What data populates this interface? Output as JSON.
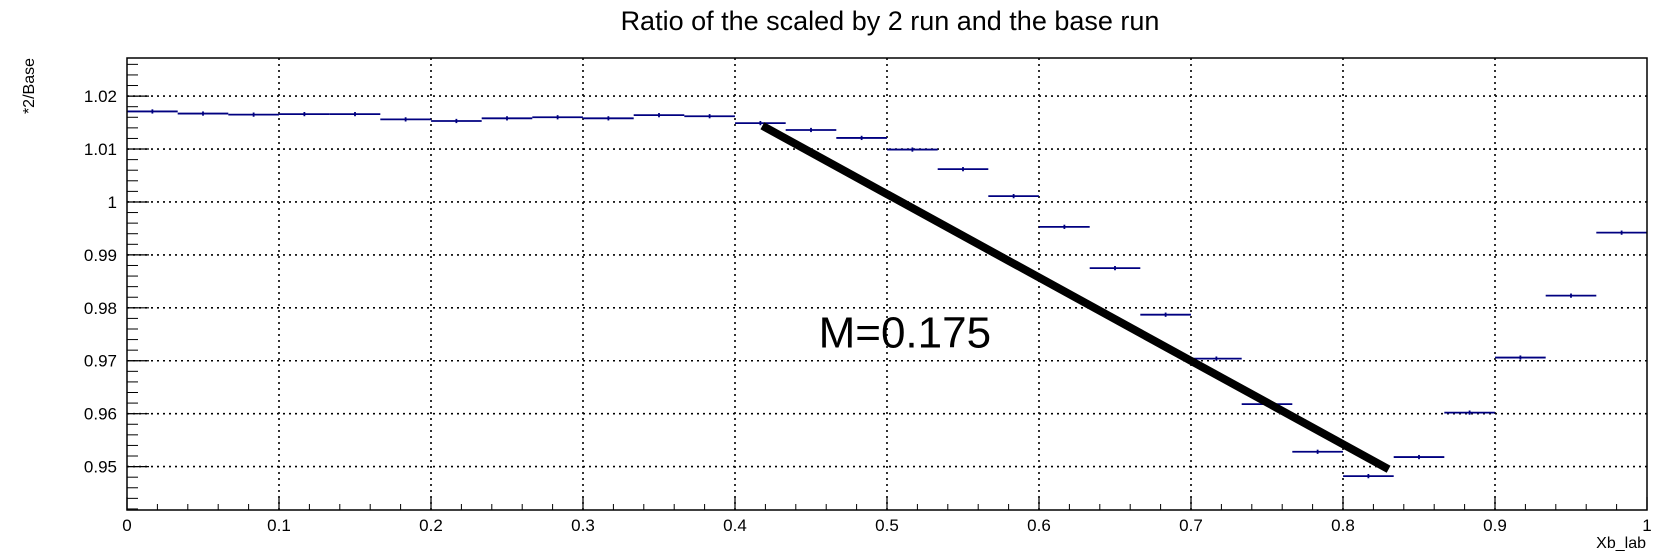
{
  "chart_data": {
    "type": "scatter",
    "title": "Ratio of the scaled by 2 run and the base run",
    "xlabel": "Xb_lab",
    "ylabel": "*2/Base",
    "xlim": [
      0,
      1
    ],
    "ylim": [
      0.9418,
      1.0272
    ],
    "x_ticks": [
      {
        "v": 0,
        "label": "0"
      },
      {
        "v": 0.1,
        "label": "0.1"
      },
      {
        "v": 0.2,
        "label": "0.2"
      },
      {
        "v": 0.3,
        "label": "0.3"
      },
      {
        "v": 0.4,
        "label": "0.4"
      },
      {
        "v": 0.5,
        "label": "0.5"
      },
      {
        "v": 0.6,
        "label": "0.6"
      },
      {
        "v": 0.7,
        "label": "0.7"
      },
      {
        "v": 0.8,
        "label": "0.8"
      },
      {
        "v": 0.9,
        "label": "0.9"
      },
      {
        "v": 1,
        "label": "1"
      }
    ],
    "y_ticks": [
      {
        "v": 0.95,
        "label": "0.95"
      },
      {
        "v": 0.96,
        "label": "0.96"
      },
      {
        "v": 0.97,
        "label": "0.97"
      },
      {
        "v": 0.98,
        "label": "0.98"
      },
      {
        "v": 0.99,
        "label": "0.99"
      },
      {
        "v": 1.0,
        "label": "1"
      },
      {
        "v": 1.01,
        "label": "1.01"
      },
      {
        "v": 1.02,
        "label": "1.02"
      }
    ],
    "grid": true,
    "series": [
      {
        "color": "#000080",
        "bin_width": 0.0333,
        "x": [
          0.0167,
          0.05,
          0.0833,
          0.1167,
          0.15,
          0.1833,
          0.2167,
          0.25,
          0.2833,
          0.3167,
          0.35,
          0.3833,
          0.4167,
          0.45,
          0.4833,
          0.5167,
          0.55,
          0.5833,
          0.6167,
          0.65,
          0.6833,
          0.7167,
          0.75,
          0.7833,
          0.8167,
          0.85,
          0.8833,
          0.9167,
          0.95,
          0.9833
        ],
        "y": [
          1.0171,
          1.0167,
          1.0165,
          1.0166,
          1.0166,
          1.0156,
          1.0153,
          1.0158,
          1.016,
          1.0158,
          1.0164,
          1.0162,
          1.0149,
          1.0136,
          1.0121,
          1.0099,
          1.0062,
          1.0011,
          0.9953,
          0.9875,
          0.9787,
          0.9704,
          0.9618,
          0.9528,
          0.9482,
          0.9518,
          0.9602,
          0.9706,
          0.9823,
          0.9942
        ],
        "yerr": 0.0004
      }
    ],
    "fit_line": {
      "x": [
        0.418,
        0.83
      ],
      "y": [
        1.0144,
        0.9495
      ],
      "color": "#000000"
    },
    "annotations": [
      {
        "text": "M=0.175",
        "x": 0.455,
        "y": 0.9725
      }
    ]
  }
}
